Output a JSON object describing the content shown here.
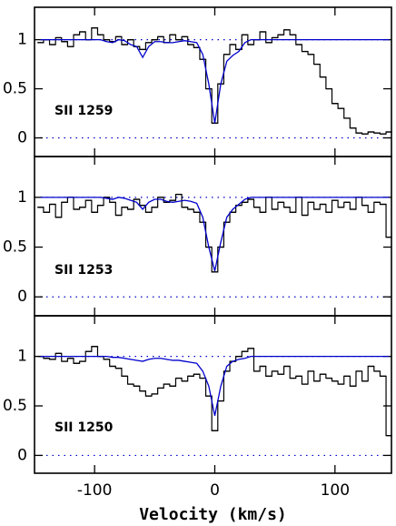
{
  "chart_data": [
    {
      "type": "line",
      "step": true,
      "label": "SII  1259",
      "x": [
        -145,
        -140,
        -135,
        -130,
        -125,
        -120,
        -115,
        -110,
        -105,
        -100,
        -95,
        -90,
        -85,
        -80,
        -75,
        -70,
        -65,
        -60,
        -55,
        -50,
        -45,
        -40,
        -35,
        -30,
        -25,
        -20,
        -15,
        -10,
        -5,
        0,
        5,
        10,
        15,
        20,
        25,
        30,
        35,
        40,
        45,
        50,
        55,
        60,
        65,
        70,
        75,
        80,
        85,
        90,
        95,
        100,
        105,
        110,
        115,
        120,
        125,
        130,
        135,
        140,
        145
      ],
      "series": [
        {
          "color": "#000000",
          "step": true,
          "values": [
            0.97,
            1.0,
            0.95,
            1.02,
            0.98,
            0.93,
            1.05,
            1.08,
            1.0,
            1.12,
            1.05,
            1.0,
            0.98,
            1.03,
            0.95,
            1.0,
            0.93,
            0.9,
            0.97,
            1.0,
            1.03,
            0.97,
            1.05,
            1.0,
            1.03,
            0.95,
            0.92,
            0.8,
            0.5,
            0.15,
            0.55,
            0.85,
            0.95,
            0.9,
            1.05,
            0.95,
            1.0,
            1.08,
            0.97,
            1.02,
            1.05,
            1.1,
            1.05,
            0.95,
            0.88,
            0.85,
            0.75,
            0.62,
            0.5,
            0.35,
            0.3,
            0.2,
            0.1,
            0.05,
            0.04,
            0.06,
            0.05,
            0.04,
            0.06
          ]
        },
        {
          "color": "#0000cc",
          "step": false,
          "values": [
            1,
            1,
            1,
            1,
            1,
            1,
            1,
            1,
            1,
            1,
            1,
            0.98,
            0.97,
            1,
            0.99,
            0.95,
            0.93,
            0.82,
            0.93,
            0.98,
            0.98,
            0.97,
            0.97,
            0.98,
            0.99,
            0.98,
            0.97,
            0.85,
            0.55,
            0.15,
            0.55,
            0.78,
            0.84,
            0.88,
            0.97,
            1,
            1,
            1,
            1,
            1,
            1,
            1,
            1,
            1,
            1,
            1,
            1,
            1,
            1,
            1,
            1,
            1,
            1,
            1,
            1,
            1,
            1,
            1,
            1
          ]
        }
      ],
      "xlim": [
        -150,
        147
      ],
      "xticks": [
        -100,
        0,
        100
      ],
      "ylim": [
        -0.19,
        1.33
      ],
      "yticks": [
        0,
        0.5,
        1
      ],
      "hlines": [
        0,
        1
      ],
      "hline_color": "#0000cc"
    },
    {
      "type": "line",
      "step": true,
      "label": "SII  1253",
      "x": [
        -145,
        -140,
        -135,
        -130,
        -125,
        -120,
        -115,
        -110,
        -105,
        -100,
        -95,
        -90,
        -85,
        -80,
        -75,
        -70,
        -65,
        -60,
        -55,
        -50,
        -45,
        -40,
        -35,
        -30,
        -25,
        -20,
        -15,
        -10,
        -5,
        0,
        5,
        10,
        15,
        20,
        25,
        30,
        35,
        40,
        45,
        50,
        55,
        60,
        65,
        70,
        75,
        80,
        85,
        90,
        95,
        100,
        105,
        110,
        115,
        120,
        125,
        130,
        135,
        140,
        145
      ],
      "series": [
        {
          "color": "#000000",
          "step": true,
          "values": [
            0.9,
            0.85,
            0.93,
            0.8,
            0.95,
            1.0,
            0.88,
            0.9,
            0.97,
            0.85,
            0.92,
            1.0,
            0.95,
            0.82,
            0.9,
            0.88,
            0.98,
            0.92,
            0.85,
            0.9,
            1.0,
            0.95,
            0.97,
            1.03,
            0.9,
            0.88,
            0.85,
            0.75,
            0.5,
            0.25,
            0.5,
            0.75,
            0.85,
            0.92,
            0.95,
            0.98,
            0.9,
            0.85,
            1.0,
            0.88,
            0.95,
            0.9,
            0.85,
            1.0,
            0.82,
            0.95,
            0.88,
            0.93,
            0.85,
            0.97,
            0.9,
            0.95,
            0.88,
            1.0,
            0.92,
            0.85,
            0.95,
            0.93,
            0.6
          ]
        },
        {
          "color": "#0000cc",
          "step": false,
          "values": [
            1,
            1,
            1,
            1,
            1,
            1,
            1,
            1,
            1,
            1,
            1,
            0.99,
            0.98,
            1,
            0.99,
            0.97,
            0.95,
            0.88,
            0.95,
            0.98,
            0.98,
            0.96,
            0.95,
            0.96,
            0.97,
            0.96,
            0.94,
            0.8,
            0.5,
            0.26,
            0.55,
            0.8,
            0.88,
            0.93,
            0.98,
            1,
            1,
            1,
            1,
            1,
            1,
            1,
            1,
            1,
            1,
            1,
            1,
            1,
            1,
            1,
            1,
            1,
            1,
            1,
            1,
            1,
            1,
            1,
            1
          ]
        }
      ],
      "xlim": [
        -150,
        147
      ],
      "xticks": [
        -100,
        0,
        100
      ],
      "ylim": [
        -0.19,
        1.41
      ],
      "yticks": [
        0,
        0.5,
        1
      ],
      "hlines": [
        0,
        1
      ],
      "hline_color": "#0000cc"
    },
    {
      "type": "line",
      "step": true,
      "label": "SII  1250",
      "xlabel": "Velocity (km/s)",
      "x": [
        -145,
        -140,
        -135,
        -130,
        -125,
        -120,
        -115,
        -110,
        -105,
        -100,
        -95,
        -90,
        -85,
        -80,
        -75,
        -70,
        -65,
        -60,
        -55,
        -50,
        -45,
        -40,
        -35,
        -30,
        -25,
        -20,
        -15,
        -10,
        -5,
        0,
        5,
        10,
        15,
        20,
        25,
        30,
        35,
        40,
        45,
        50,
        55,
        60,
        65,
        70,
        75,
        80,
        85,
        90,
        95,
        100,
        105,
        110,
        115,
        120,
        125,
        130,
        135,
        140,
        145
      ],
      "series": [
        {
          "color": "#000000",
          "step": true,
          "values": [
            1.0,
            0.98,
            0.97,
            1.03,
            0.95,
            0.98,
            0.93,
            0.95,
            1.05,
            1.1,
            1.0,
            0.97,
            0.9,
            0.88,
            0.8,
            0.72,
            0.7,
            0.65,
            0.6,
            0.62,
            0.68,
            0.72,
            0.7,
            0.78,
            0.75,
            0.8,
            0.82,
            0.78,
            0.6,
            0.25,
            0.55,
            0.85,
            0.95,
            1.0,
            1.05,
            1.08,
            0.85,
            0.9,
            0.8,
            0.85,
            0.82,
            0.9,
            0.78,
            0.8,
            0.72,
            0.85,
            0.75,
            0.82,
            0.78,
            0.75,
            0.72,
            0.8,
            0.7,
            0.85,
            0.75,
            0.9,
            0.85,
            0.8,
            0.2
          ]
        },
        {
          "color": "#0000cc",
          "step": false,
          "values": [
            1,
            1,
            1,
            1,
            1,
            1,
            1,
            1,
            1,
            1,
            1,
            1,
            0.99,
            0.99,
            0.98,
            0.97,
            0.96,
            0.95,
            0.97,
            0.98,
            0.98,
            0.97,
            0.96,
            0.96,
            0.95,
            0.94,
            0.93,
            0.85,
            0.7,
            0.4,
            0.7,
            0.9,
            0.95,
            0.97,
            0.98,
            1,
            1,
            1,
            1,
            1,
            1,
            1,
            1,
            1,
            1,
            1,
            1,
            1,
            1,
            1,
            1,
            1,
            1,
            1,
            1,
            1,
            1,
            1,
            1
          ]
        }
      ],
      "xlim": [
        -150,
        147
      ],
      "xticks": [
        -100,
        0,
        100
      ],
      "ylim": [
        -0.18,
        1.41
      ],
      "yticks": [
        0,
        0.5,
        1
      ],
      "hlines": [
        0,
        1
      ],
      "hline_color": "#0000cc"
    }
  ]
}
